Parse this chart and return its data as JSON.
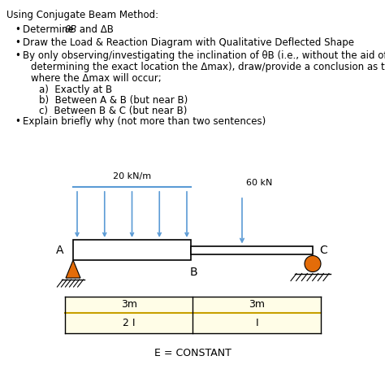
{
  "title": "Using Conjugate Beam Method:",
  "background_color": "#ffffff",
  "load_color": "#5b9bd5",
  "support_pin_color": "#e36c09",
  "support_roller_color": "#e36c09",
  "dist_load_label": "20 kN/m",
  "point_load_label": "60 kN",
  "label_A": "A",
  "label_B": "B",
  "label_C": "C",
  "dim_left": "3m",
  "dim_right": "3m",
  "moment_left": "2 I",
  "moment_right": "I",
  "bottom_label": "E = CONSTANT",
  "text_fontsize": 8.5,
  "title_fontsize": 8.5,
  "diagram_fontsize": 8.0
}
